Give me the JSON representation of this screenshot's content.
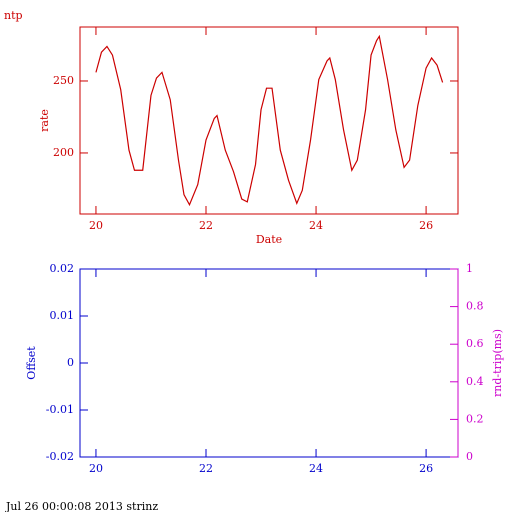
{
  "chart_data": [
    {
      "type": "line",
      "title": "ntp",
      "xlabel": "Date",
      "ylabel": "rate",
      "color": "#cc0000",
      "xlim": [
        19.71,
        26.58
      ],
      "xticks": [
        20,
        22,
        24,
        26
      ],
      "ylim": [
        157.6,
        287.5
      ],
      "yticks": [
        200,
        250
      ],
      "series": [
        {
          "color": "#cc0000",
          "x": [
            20.0,
            20.1,
            20.2,
            20.3,
            20.45,
            20.6,
            20.7,
            20.85,
            21.0,
            21.1,
            21.2,
            21.35,
            21.5,
            21.6,
            21.7,
            21.85,
            22.0,
            22.15,
            22.2,
            22.35,
            22.5,
            22.65,
            22.75,
            22.9,
            23.0,
            23.1,
            23.2,
            23.35,
            23.5,
            23.65,
            23.75,
            23.9,
            24.05,
            24.2,
            24.25,
            24.35,
            24.5,
            24.65,
            24.75,
            24.9,
            25.0,
            25.1,
            25.15,
            25.3,
            25.45,
            25.6,
            25.7,
            25.85,
            26.0,
            26.1,
            26.2,
            26.3
          ],
          "values": [
            256,
            270,
            274,
            268,
            244,
            202,
            188,
            188,
            240,
            252,
            256,
            237,
            195,
            171,
            164,
            178,
            209,
            224,
            226,
            202,
            187,
            168,
            166,
            192,
            230,
            245,
            245,
            202,
            181,
            165,
            174,
            209,
            251,
            264,
            266,
            251,
            216,
            188,
            195,
            230,
            268,
            278,
            281,
            251,
            216,
            190,
            195,
            233,
            259,
            266,
            261,
            249
          ]
        }
      ]
    },
    {
      "type": "line",
      "ylabel": "Offset",
      "y2label": "rnd-trip(ms)",
      "color": "#0000cc",
      "y2color": "#cc00cc",
      "xlim": [
        19.71,
        26.58
      ],
      "xticks": [
        20,
        22,
        24,
        26
      ],
      "ylim": [
        -0.02,
        0.02
      ],
      "yticks": [
        -0.02,
        -0.01,
        0,
        0.01,
        0.02
      ],
      "y2lim": [
        0,
        1
      ],
      "y2ticks": [
        0,
        0.2,
        0.4,
        0.6,
        0.8,
        1
      ]
    }
  ],
  "footer": "Jul 26 00:00:08 2013 strinz"
}
